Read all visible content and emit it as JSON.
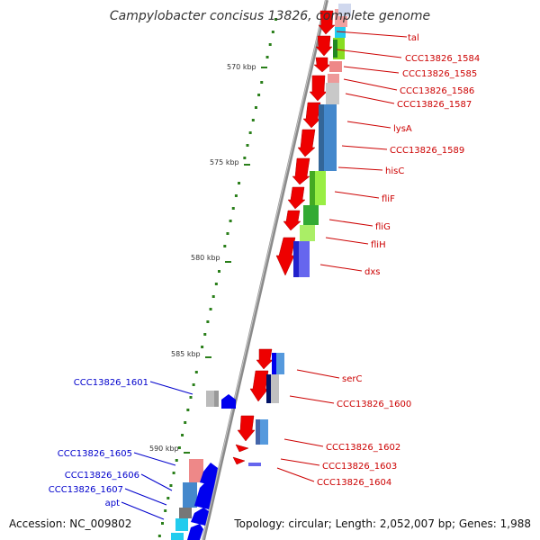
{
  "title": "Campylobacter concisus 13826, complete genome",
  "footer": {
    "accession": "Accession: NC_009802",
    "topology": "Topology: circular; Length: 2,052,007 bp; Genes: 1,988"
  },
  "ticks": [
    "570 kbp",
    "575 kbp",
    "580 kbp",
    "585 kbp",
    "590 kbp"
  ],
  "colors": {
    "forward_label": "#cc0000",
    "reverse_label": "#0000cc",
    "cds_forward": "#ee0000",
    "cds_reverse": "#0000ee",
    "backbone": "#888888",
    "gc_dots": "#2a7f1a"
  },
  "genes_right": [
    "tal",
    "CCC13826_1584",
    "CCC13826_1585",
    "CCC13826_1586",
    "CCC13826_1587",
    "lysA",
    "CCC13826_1589",
    "hisC",
    "fliF",
    "fliG",
    "fliH",
    "dxs",
    "serC",
    "CCC13826_1600",
    "CCC13826_1602",
    "CCC13826_1603",
    "CCC13826_1604"
  ],
  "genes_left": [
    "CCC13826_1601",
    "CCC13826_1605",
    "CCC13826_1606",
    "CCC13826_1607",
    "apt"
  ]
}
